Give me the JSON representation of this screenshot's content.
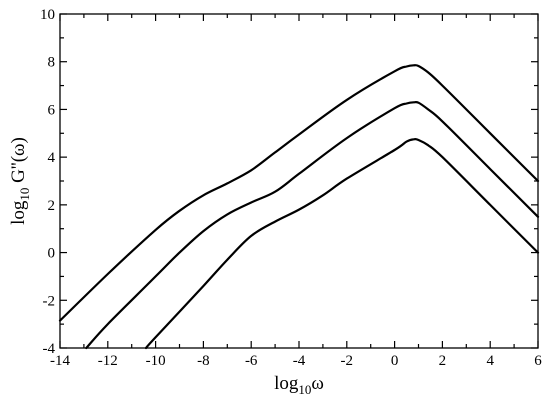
{
  "chart_data": {
    "type": "line",
    "title": "",
    "xlabel": {
      "base": "log",
      "sub": "10",
      "rest": "ω"
    },
    "ylabel": {
      "base": "log",
      "sub": "10",
      "rest": " G''(ω)"
    },
    "xlim": [
      -14,
      6
    ],
    "ylim": [
      -4,
      10
    ],
    "x_ticks": [
      -14,
      -12,
      -10,
      -8,
      -6,
      -4,
      -2,
      0,
      2,
      4,
      6
    ],
    "y_ticks": [
      -4,
      -2,
      0,
      2,
      4,
      6,
      8,
      10
    ],
    "x_tick_labels": [
      "-14",
      "-12",
      "-10",
      "-8",
      "-6",
      "-4",
      "-2",
      "0",
      "2",
      "4",
      "6"
    ],
    "y_tick_labels": [
      "-4",
      "-2",
      "0",
      "2",
      "4",
      "6",
      "8",
      "10"
    ],
    "grid": false,
    "legend": "none",
    "series": [
      {
        "x": [
          -14,
          -12,
          -10,
          -9,
          -8,
          -7,
          -6,
          -5,
          -4,
          -2,
          0,
          0.5,
          0.8,
          1,
          1.4,
          2,
          4,
          6
        ],
        "y": [
          -2.85,
          -0.9,
          0.95,
          1.75,
          2.4,
          2.9,
          3.45,
          4.2,
          4.95,
          6.4,
          7.6,
          7.8,
          7.85,
          7.82,
          7.55,
          7.0,
          5.0,
          3.0
        ]
      },
      {
        "x": [
          -12.9,
          -12,
          -10,
          -9,
          -8,
          -7,
          -6,
          -5,
          -4,
          -2,
          0,
          0.5,
          0.8,
          1,
          1.4,
          2,
          4,
          6
        ],
        "y": [
          -4.0,
          -3.0,
          -1.0,
          0.0,
          0.9,
          1.6,
          2.1,
          2.55,
          3.3,
          4.8,
          6.05,
          6.25,
          6.3,
          6.28,
          6.0,
          5.5,
          3.5,
          1.5
        ]
      },
      {
        "x": [
          -10.4,
          -10,
          -8,
          -7,
          -6,
          -5,
          -4,
          -3,
          -2,
          0,
          0.5,
          0.8,
          1,
          1.4,
          2,
          4,
          6
        ],
        "y": [
          -4.0,
          -3.55,
          -1.4,
          -0.3,
          0.7,
          1.3,
          1.8,
          2.4,
          3.1,
          4.3,
          4.65,
          4.75,
          4.72,
          4.5,
          4.0,
          2.0,
          0.0
        ]
      }
    ]
  }
}
